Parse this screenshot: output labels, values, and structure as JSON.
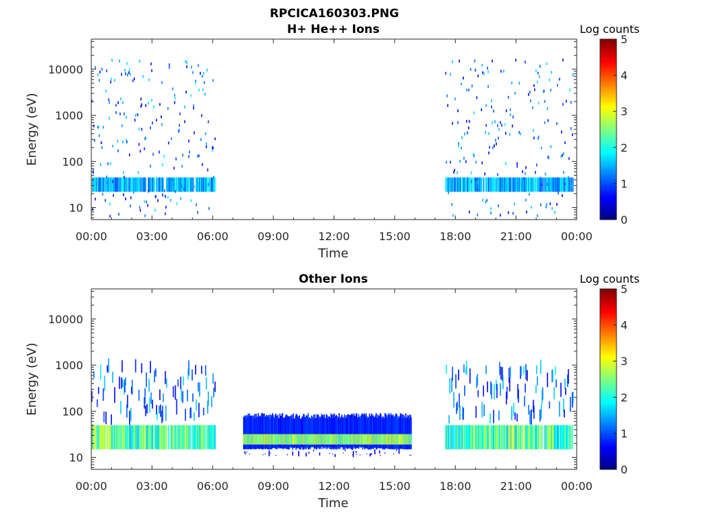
{
  "figure": {
    "title": "RPCICA160303.PNG"
  },
  "chart_data": [
    {
      "type": "heatmap",
      "title": "H+ He++ Ions",
      "xlabel": "Time",
      "ylabel": "Energy (eV)",
      "x_ticks": [
        "00:00",
        "03:00",
        "06:00",
        "09:00",
        "12:00",
        "15:00",
        "18:00",
        "21:00",
        "00:00"
      ],
      "xlim_hours": [
        0,
        24
      ],
      "y_scale": "log",
      "ylim": [
        5.5,
        45000
      ],
      "y_ticks": [
        10,
        100,
        1000,
        10000
      ],
      "y_tick_labels": [
        "10",
        "100",
        "1000",
        "10000"
      ],
      "colorbar": {
        "label": "Log counts",
        "range": [
          0,
          5
        ],
        "ticks": [
          "0",
          "1",
          "2",
          "3",
          "4",
          "5"
        ],
        "colormap": "jet"
      },
      "data_intervals_hours": [
        [
          0.0,
          6.1
        ],
        [
          17.5,
          23.8
        ]
      ],
      "band": {
        "energy_range": [
          22,
          45
        ],
        "log_counts": [
          1,
          2
        ]
      },
      "scatter": {
        "energy_range": [
          6,
          15000
        ],
        "log_counts": [
          0.5,
          2
        ]
      }
    },
    {
      "type": "heatmap",
      "title": "Other Ions",
      "xlabel": "Time",
      "ylabel": "Energy (eV)",
      "x_ticks": [
        "00:00",
        "03:00",
        "06:00",
        "09:00",
        "12:00",
        "15:00",
        "18:00",
        "21:00",
        "00:00"
      ],
      "xlim_hours": [
        0,
        24
      ],
      "y_scale": "log",
      "ylim": [
        5.5,
        45000
      ],
      "y_ticks": [
        10,
        100,
        1000,
        10000
      ],
      "y_tick_labels": [
        "10",
        "100",
        "1000",
        "10000"
      ],
      "colorbar": {
        "label": "Log counts",
        "range": [
          0,
          5
        ],
        "ticks": [
          "0",
          "1",
          "2",
          "3",
          "4",
          "5"
        ],
        "colormap": "jet"
      },
      "data_intervals_hours": [
        [
          0.0,
          6.1
        ],
        [
          7.5,
          15.8
        ],
        [
          17.5,
          23.8
        ]
      ],
      "band": {
        "energy_range": [
          15,
          50
        ],
        "log_counts": [
          1.5,
          3
        ]
      },
      "dense_block": {
        "hours": [
          7.5,
          15.8
        ],
        "energy_range": [
          15,
          80
        ],
        "log_counts": [
          1,
          3
        ]
      }
    }
  ]
}
